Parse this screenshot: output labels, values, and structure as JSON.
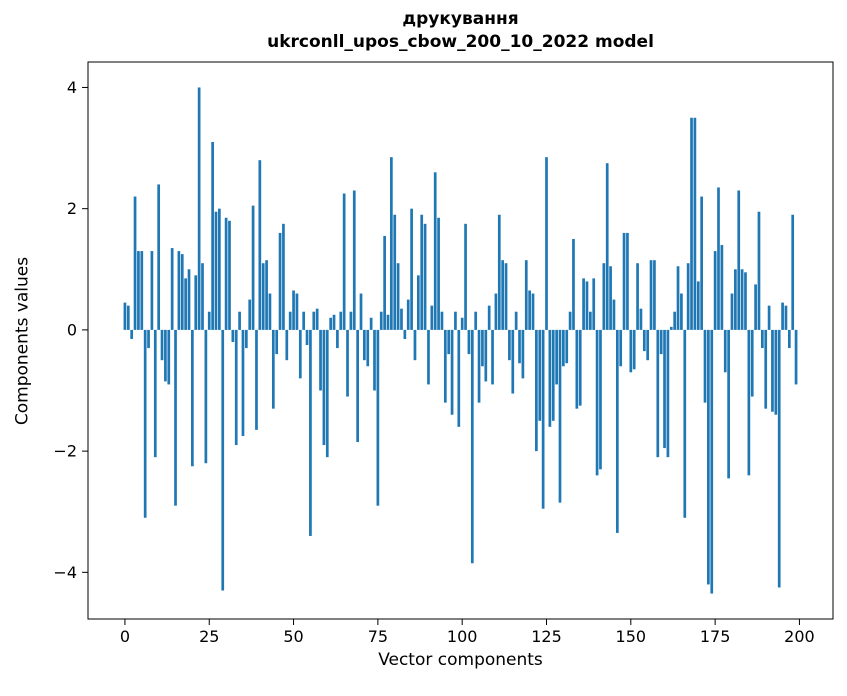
{
  "chart_data": {
    "type": "bar",
    "title": "друкування",
    "subtitle": "ukrconll_upos_cbow_200_10_2022 model",
    "xlabel": "Vector components",
    "ylabel": "Components values",
    "bar_color": "#1f77b4",
    "xlim": [
      -10.95,
      209.95
    ],
    "ylim": [
      -4.77,
      4.42
    ],
    "xticks": [
      0,
      25,
      50,
      75,
      100,
      125,
      150,
      175,
      200
    ],
    "yticks": [
      -4,
      -2,
      0,
      2,
      4
    ],
    "x_start": 0,
    "bar_width": 0.8,
    "values": [
      0.45,
      0.4,
      -0.15,
      2.2,
      1.3,
      1.3,
      -3.1,
      -0.3,
      1.3,
      -2.1,
      2.4,
      -0.5,
      -0.85,
      -0.9,
      1.35,
      -2.9,
      1.3,
      1.25,
      0.85,
      1.0,
      -2.25,
      0.9,
      4.0,
      1.1,
      -2.2,
      0.3,
      3.1,
      1.95,
      2.0,
      -4.3,
      1.85,
      1.8,
      -0.2,
      -1.9,
      0.3,
      -1.75,
      -0.3,
      0.5,
      2.05,
      -1.65,
      2.8,
      1.1,
      1.15,
      0.6,
      -1.3,
      -0.4,
      1.6,
      1.75,
      -0.5,
      0.3,
      0.65,
      0.6,
      -0.8,
      0.3,
      -0.25,
      -3.4,
      0.3,
      0.35,
      -1.0,
      -1.9,
      -2.1,
      0.2,
      0.25,
      -0.3,
      0.3,
      2.25,
      -1.1,
      0.3,
      2.3,
      -1.85,
      0.6,
      -0.5,
      -0.6,
      0.2,
      -1.0,
      -2.9,
      0.3,
      1.55,
      0.25,
      2.85,
      1.9,
      1.1,
      0.35,
      -0.15,
      0.5,
      2.0,
      -0.5,
      0.9,
      1.9,
      1.75,
      -0.9,
      0.4,
      2.6,
      1.85,
      0.3,
      -1.2,
      -0.4,
      -1.4,
      0.3,
      -1.6,
      0.2,
      1.75,
      -0.4,
      -3.85,
      0.3,
      -1.2,
      -0.6,
      -0.85,
      0.4,
      -0.9,
      0.6,
      1.9,
      1.15,
      1.1,
      -0.5,
      -1.05,
      0.3,
      -0.55,
      -0.8,
      1.15,
      0.65,
      0.6,
      -2.0,
      -1.5,
      -2.95,
      2.85,
      -1.6,
      -1.5,
      -0.9,
      -2.85,
      -0.6,
      -0.55,
      0.3,
      1.5,
      -1.3,
      -1.25,
      0.85,
      0.8,
      0.3,
      0.85,
      -2.4,
      -2.3,
      1.1,
      2.75,
      1.05,
      0.5,
      -3.35,
      -0.6,
      1.6,
      1.6,
      -0.7,
      -0.65,
      1.1,
      0.35,
      -0.35,
      -0.5,
      1.15,
      1.15,
      -2.1,
      -0.4,
      -1.95,
      -2.1,
      0.05,
      0.3,
      1.05,
      0.6,
      -3.1,
      1.1,
      3.5,
      3.5,
      0.8,
      2.2,
      -1.2,
      -4.2,
      -4.35,
      1.3,
      2.35,
      1.4,
      -0.7,
      -2.45,
      0.6,
      1.0,
      2.3,
      1.0,
      0.95,
      -2.4,
      -1.1,
      0.75,
      1.95,
      -0.3,
      -1.3,
      0.4,
      -1.35,
      -1.4,
      -4.25,
      0.45,
      0.4,
      -0.3,
      1.9,
      -0.9
    ]
  }
}
